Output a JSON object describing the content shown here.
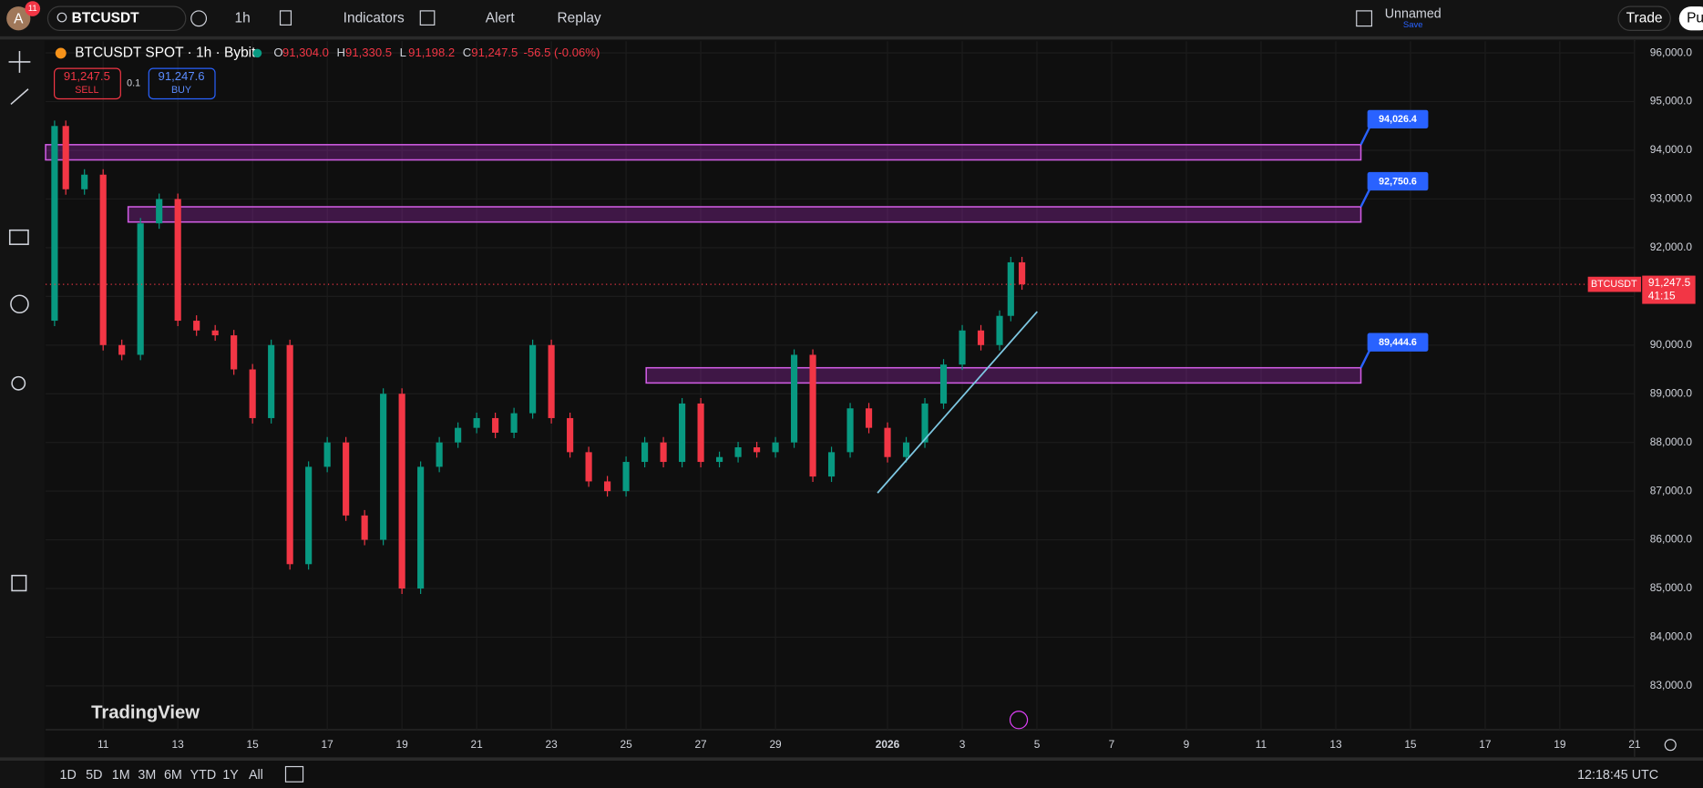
{
  "topbar": {
    "avatar": "A",
    "badge": "11",
    "symbol": "BTCUSDT",
    "interval": "1h",
    "indicators": "Indicators",
    "alert": "Alert",
    "replay": "Replay",
    "layout_name": "Unnamed",
    "save": "Save",
    "trade": "Trade",
    "publish": "Pu"
  },
  "legend": {
    "symbol": "BTCUSDT SPOT · 1h · Bybit",
    "ohlc": [
      {
        "key": "O",
        "value": "91,304.0"
      },
      {
        "key": "H",
        "value": "91,330.5"
      },
      {
        "key": "L",
        "value": "91,198.2"
      },
      {
        "key": "C",
        "value": "91,247.5"
      }
    ],
    "change": "-56.5 (-0.06%)"
  },
  "order": {
    "sell_price": "91,247.5",
    "sell": "SELL",
    "qty": "0.1",
    "buy_price": "91,247.6",
    "buy": "BUY"
  },
  "watermark": "TradingView",
  "chart": {
    "type": "candlestick",
    "colors": {
      "up": "#089981",
      "down": "#f23645",
      "zone": "#9c27b0",
      "trend": "#7ec8e3"
    },
    "x": [
      -1.5,
      -1.3,
      -1,
      -0.5,
      0,
      0.5,
      1,
      1.5,
      2,
      2.5,
      3,
      3.5,
      4,
      4.5,
      5,
      5.5,
      6,
      6.5,
      7,
      7.5,
      8,
      8.5,
      9,
      9.5,
      10,
      10.5,
      11,
      11.5,
      12,
      12.5,
      13,
      13.5,
      14,
      14.5,
      15,
      15.5,
      16,
      16.5,
      17,
      17.5,
      18,
      18.5,
      19,
      19.5,
      20,
      20.5,
      21,
      21.5,
      22,
      22.5,
      23,
      23.5,
      24,
      24.3,
      24.6
    ],
    "closes": [
      90500,
      94500,
      93200,
      93500,
      90000,
      89800,
      92500,
      93000,
      90500,
      90300,
      90200,
      89500,
      88500,
      90000,
      85500,
      87500,
      88000,
      86500,
      86000,
      89000,
      85000,
      87500,
      88000,
      88300,
      88500,
      88200,
      88600,
      90000,
      88500,
      87800,
      87200,
      87000,
      87600,
      88000,
      87600,
      88800,
      87600,
      87700,
      87900,
      87800,
      88000,
      89800,
      87300,
      87800,
      88700,
      88300,
      87700,
      88000,
      88800,
      89600,
      90300,
      90000,
      90600,
      91700,
      91247.5
    ],
    "xlim": [
      -1.54,
      41
    ],
    "ylim": [
      82100,
      96240
    ],
    "xticks": [
      {
        "value": 0,
        "label": "11"
      },
      {
        "value": 2,
        "label": "13"
      },
      {
        "value": 4,
        "label": "15"
      },
      {
        "value": 6,
        "label": "17"
      },
      {
        "value": 8,
        "label": "19"
      },
      {
        "value": 10,
        "label": "21"
      },
      {
        "value": 12,
        "label": "23"
      },
      {
        "value": 14,
        "label": "25"
      },
      {
        "value": 16,
        "label": "27"
      },
      {
        "value": 18,
        "label": "29"
      },
      {
        "value": 21,
        "label": "2026"
      },
      {
        "value": 23,
        "label": "3"
      },
      {
        "value": 25,
        "label": "5"
      },
      {
        "value": 27,
        "label": "7"
      },
      {
        "value": 29,
        "label": "9"
      },
      {
        "value": 31,
        "label": "11"
      },
      {
        "value": 33,
        "label": "13"
      },
      {
        "value": 35,
        "label": "15"
      },
      {
        "value": 37,
        "label": "17"
      },
      {
        "value": 39,
        "label": "19"
      },
      {
        "value": 41,
        "label": "21"
      }
    ],
    "yticks": [
      {
        "value": 83000,
        "label": "83,000.0"
      },
      {
        "value": 84000,
        "label": "84,000.0"
      },
      {
        "value": 85000,
        "label": "85,000.0"
      },
      {
        "value": 86000,
        "label": "86,000.0"
      },
      {
        "value": 87000,
        "label": "87,000.0"
      },
      {
        "value": 88000,
        "label": "88,000.0"
      },
      {
        "value": 89000,
        "label": "89,000.0"
      },
      {
        "value": 90000,
        "label": "90,000.0"
      },
      {
        "value": 91000,
        "label": "91,000.0"
      },
      {
        "value": 92000,
        "label": "92,000.0"
      },
      {
        "value": 93000,
        "label": "93,000.0"
      },
      {
        "value": 94000,
        "label": "94,000.0"
      },
      {
        "value": 95000,
        "label": "95,000.0"
      },
      {
        "value": 96000,
        "label": "96,000.0"
      }
    ],
    "zones": [
      {
        "value": 94026.4,
        "label": "94,026.4"
      },
      {
        "value": 92750.6,
        "label": "92,750.6"
      },
      {
        "value": 89444.6,
        "label": "89,444.6"
      }
    ],
    "last_price": {
      "value": 91247.5,
      "label": "91,247.5"
    },
    "axis_symbol": "BTCUSDT",
    "countdown": "41:15"
  },
  "bottombar": {
    "ranges": [
      "1D",
      "5D",
      "1M",
      "3M",
      "6M",
      "YTD",
      "1Y",
      "All"
    ],
    "clock": "12:18:45 UTC"
  }
}
